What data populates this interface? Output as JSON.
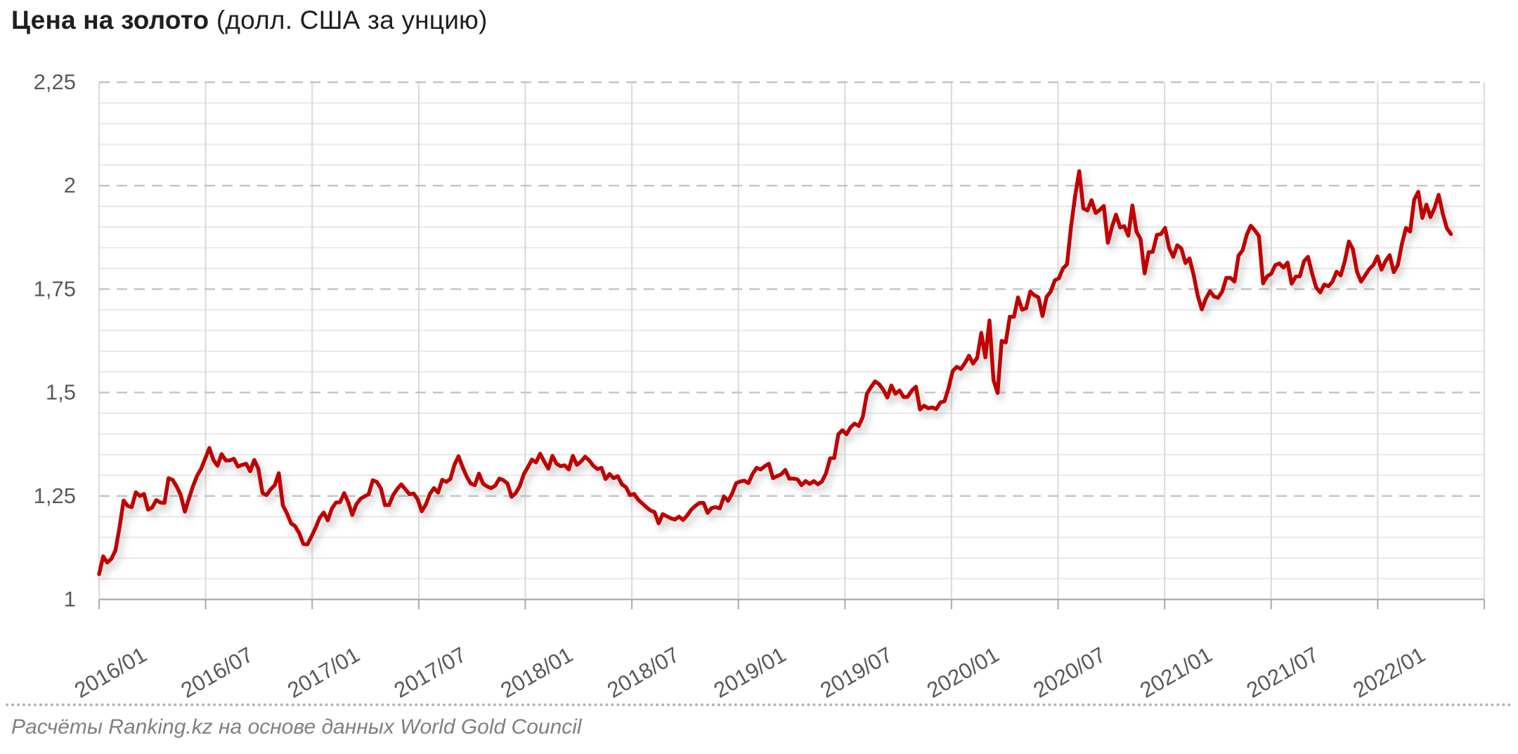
{
  "title": {
    "bold": "Цена на золото",
    "subtitle": " (долл. США за унцию)"
  },
  "footer": {
    "source": "Расчёты Ranking.kz на основе данных World Gold Council"
  },
  "chart_data": {
    "type": "line",
    "title": "Цена на золото (долл. США за унцию)",
    "xlabel": "",
    "ylabel": "",
    "legend": "none",
    "grid": "major-dashed-horizontal, minor-solid-horizontal, vertical-solid",
    "xlim": [
      2016.0,
      2022.5
    ],
    "ylim": [
      1.0,
      2.25
    ],
    "y_major_step": 0.25,
    "y_minor_step": 0.05,
    "y_ticks": [
      {
        "value": 1.0,
        "label": "1"
      },
      {
        "value": 1.25,
        "label": "1,25"
      },
      {
        "value": 1.5,
        "label": "1,5"
      },
      {
        "value": 1.75,
        "label": "1,75"
      },
      {
        "value": 2.0,
        "label": "2"
      },
      {
        "value": 2.25,
        "label": "2,25"
      }
    ],
    "x_ticks": [
      {
        "year": 2016.0,
        "label": "2016/01"
      },
      {
        "year": 2016.5,
        "label": "2016/07"
      },
      {
        "year": 2017.0,
        "label": "2017/01"
      },
      {
        "year": 2017.5,
        "label": "2017/07"
      },
      {
        "year": 2018.0,
        "label": "2018/01"
      },
      {
        "year": 2018.5,
        "label": "2018/07"
      },
      {
        "year": 2019.0,
        "label": "2019/01"
      },
      {
        "year": 2019.5,
        "label": "2019/07"
      },
      {
        "year": 2020.0,
        "label": "2020/01"
      },
      {
        "year": 2020.5,
        "label": "2020/07"
      },
      {
        "year": 2021.0,
        "label": "2021/01"
      },
      {
        "year": 2021.5,
        "label": "2021/07"
      },
      {
        "year": 2022.0,
        "label": "2022/01"
      },
      {
        "year": 2022.5,
        "label": ""
      }
    ],
    "colors": {
      "line": "#c00000",
      "grid_minor": "#e8e8e8",
      "grid_major": "#c3c3c3",
      "grid_vertical": "#dcdcdc",
      "axis": "#b0b0b0",
      "tick_text": "#595959"
    },
    "series": [
      {
        "name": "Цена на золото, долл. США за унцию (тыс.)",
        "x_start_year": 2016.0,
        "x_step_days": 7,
        "values": [
          1.061,
          1.104,
          1.089,
          1.098,
          1.118,
          1.174,
          1.239,
          1.226,
          1.223,
          1.259,
          1.25,
          1.255,
          1.217,
          1.222,
          1.24,
          1.234,
          1.233,
          1.293,
          1.289,
          1.273,
          1.252,
          1.212,
          1.244,
          1.274,
          1.299,
          1.316,
          1.341,
          1.366,
          1.337,
          1.323,
          1.351,
          1.336,
          1.336,
          1.34,
          1.321,
          1.325,
          1.328,
          1.31,
          1.337,
          1.316,
          1.257,
          1.252,
          1.266,
          1.276,
          1.305,
          1.227,
          1.208,
          1.184,
          1.177,
          1.16,
          1.134,
          1.133,
          1.152,
          1.173,
          1.197,
          1.21,
          1.191,
          1.22,
          1.234,
          1.235,
          1.257,
          1.235,
          1.204,
          1.23,
          1.243,
          1.249,
          1.254,
          1.288,
          1.284,
          1.268,
          1.228,
          1.228,
          1.252,
          1.267,
          1.278,
          1.266,
          1.254,
          1.256,
          1.242,
          1.213,
          1.229,
          1.255,
          1.269,
          1.258,
          1.289,
          1.284,
          1.291,
          1.325,
          1.346,
          1.32,
          1.297,
          1.28,
          1.276,
          1.304,
          1.28,
          1.273,
          1.269,
          1.275,
          1.292,
          1.288,
          1.28,
          1.248,
          1.257,
          1.274,
          1.303,
          1.32,
          1.338,
          1.331,
          1.352,
          1.333,
          1.316,
          1.347,
          1.328,
          1.322,
          1.324,
          1.314,
          1.347,
          1.325,
          1.333,
          1.345,
          1.336,
          1.323,
          1.315,
          1.318,
          1.291,
          1.303,
          1.293,
          1.298,
          1.278,
          1.271,
          1.252,
          1.255,
          1.241,
          1.232,
          1.223,
          1.215,
          1.211,
          1.184,
          1.206,
          1.201,
          1.196,
          1.193,
          1.2,
          1.192,
          1.203,
          1.217,
          1.226,
          1.233,
          1.233,
          1.209,
          1.221,
          1.223,
          1.22,
          1.249,
          1.238,
          1.256,
          1.281,
          1.285,
          1.287,
          1.281,
          1.303,
          1.318,
          1.314,
          1.322,
          1.328,
          1.293,
          1.298,
          1.302,
          1.313,
          1.292,
          1.292,
          1.29,
          1.276,
          1.286,
          1.279,
          1.286,
          1.278,
          1.285,
          1.305,
          1.341,
          1.342,
          1.399,
          1.409,
          1.399,
          1.416,
          1.425,
          1.419,
          1.441,
          1.497,
          1.513,
          1.527,
          1.52,
          1.507,
          1.488,
          1.517,
          1.497,
          1.505,
          1.489,
          1.49,
          1.505,
          1.514,
          1.459,
          1.468,
          1.462,
          1.464,
          1.46,
          1.476,
          1.479,
          1.511,
          1.552,
          1.562,
          1.557,
          1.571,
          1.589,
          1.57,
          1.584,
          1.644,
          1.585,
          1.674,
          1.53,
          1.499,
          1.625,
          1.621,
          1.683,
          1.683,
          1.73,
          1.7,
          1.704,
          1.744,
          1.735,
          1.73,
          1.685,
          1.731,
          1.744,
          1.771,
          1.776,
          1.8,
          1.81,
          1.902,
          1.976,
          2.035,
          1.945,
          1.94,
          1.965,
          1.934,
          1.941,
          1.951,
          1.862,
          1.9,
          1.93,
          1.899,
          1.902,
          1.879,
          1.952,
          1.889,
          1.871,
          1.788,
          1.839,
          1.84,
          1.881,
          1.883,
          1.898,
          1.849,
          1.828,
          1.856,
          1.848,
          1.813,
          1.824,
          1.784,
          1.734,
          1.701,
          1.727,
          1.745,
          1.732,
          1.729,
          1.744,
          1.777,
          1.777,
          1.768,
          1.831,
          1.844,
          1.881,
          1.903,
          1.892,
          1.878,
          1.764,
          1.781,
          1.787,
          1.808,
          1.812,
          1.802,
          1.814,
          1.763,
          1.78,
          1.781,
          1.817,
          1.828,
          1.788,
          1.754,
          1.742,
          1.761,
          1.757,
          1.768,
          1.792,
          1.783,
          1.817,
          1.865,
          1.846,
          1.792,
          1.768,
          1.783,
          1.798,
          1.808,
          1.829,
          1.797,
          1.818,
          1.832,
          1.791,
          1.808,
          1.859,
          1.898,
          1.889,
          1.966,
          1.985,
          1.922,
          1.954,
          1.924,
          1.946,
          1.978,
          1.932,
          1.897,
          1.883
        ]
      }
    ]
  }
}
